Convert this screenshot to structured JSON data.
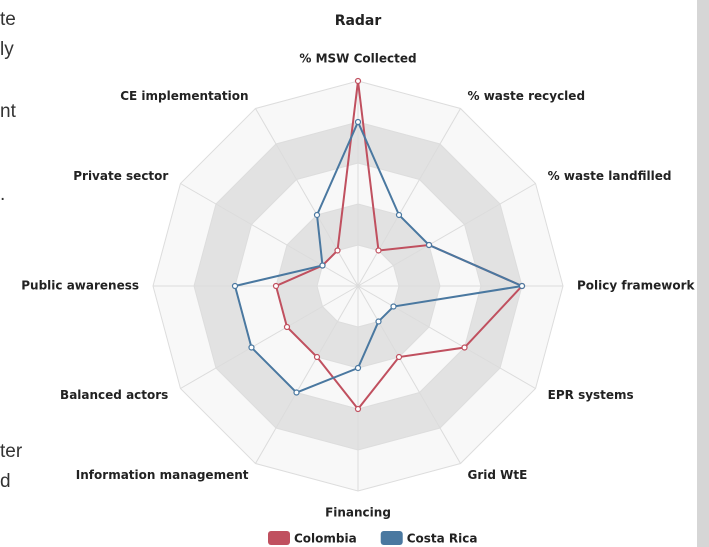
{
  "side_text": [
    "te",
    "ly",
    "nt",
    ".",
    "ter",
    "d"
  ],
  "chart_data": {
    "type": "radar",
    "title": "Radar",
    "categories": [
      "% MSW Collected",
      "% waste recycled",
      "% waste landfilled",
      "Policy framework",
      "EPR systems",
      "Grid WtE",
      "Financing",
      "Information management",
      "Balanced actors",
      "Public awareness",
      "Private sector",
      "CE implementation"
    ],
    "series": [
      {
        "name": "Colombia",
        "color": "#c0505f",
        "values": [
          5,
          1,
          2,
          4,
          3,
          2,
          3,
          2,
          2,
          2,
          1,
          1
        ]
      },
      {
        "name": "Costa Rica",
        "color": "#4a78a0",
        "values": [
          4,
          2,
          2,
          4,
          1,
          1,
          2,
          3,
          3,
          3,
          1,
          2
        ]
      }
    ],
    "rlim": [
      0,
      5
    ],
    "rticks": [
      1,
      2,
      3,
      4,
      5
    ],
    "grid": true,
    "legend": "bottom"
  }
}
